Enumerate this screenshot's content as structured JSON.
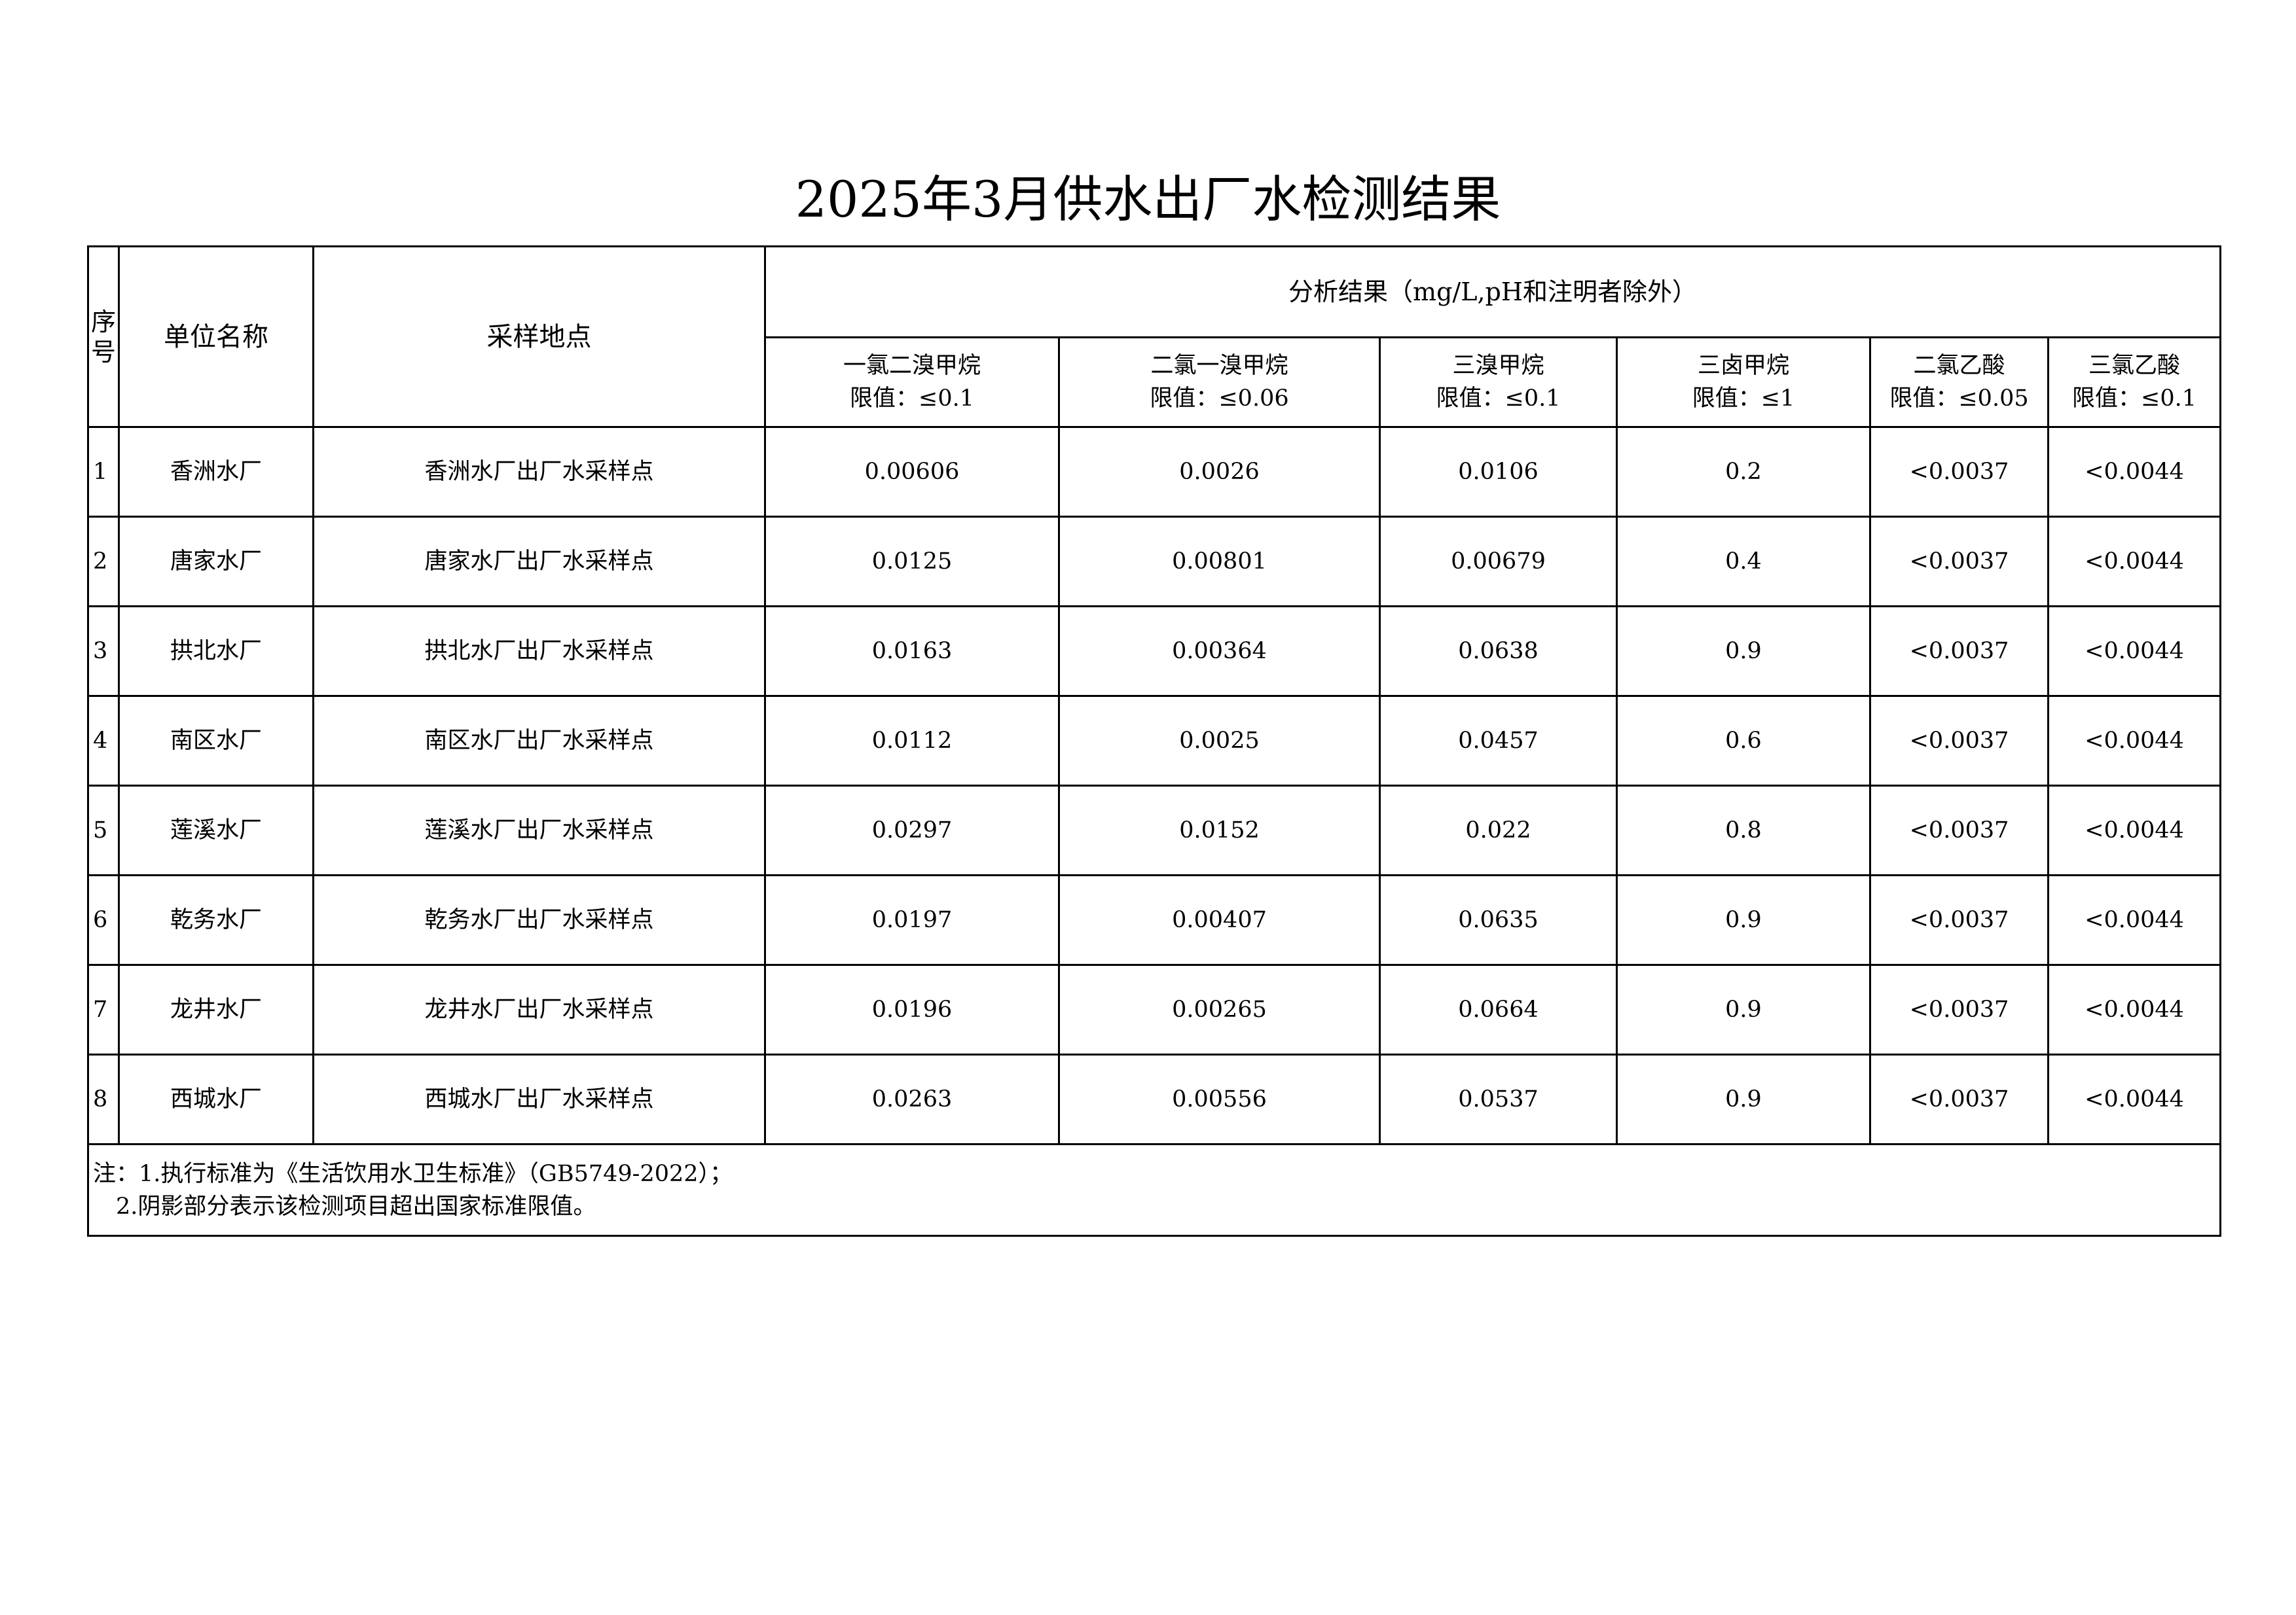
{
  "title": "2025年3月供水出厂水检测结果",
  "headers": {
    "seq": "序号",
    "unit": "单位名称",
    "site": "采样地点",
    "analysis": "分析结果（mg/L,pH和注明者除外）",
    "params": [
      {
        "name": "一氯二溴甲烷",
        "limit": "限值：≤0.1"
      },
      {
        "name": "二氯一溴甲烷",
        "limit": "限值：≤0.06"
      },
      {
        "name": "三溴甲烷",
        "limit": "限值：≤0.1"
      },
      {
        "name": "三卤甲烷",
        "limit": "限值：≤1"
      },
      {
        "name": "二氯乙酸",
        "limit": "限值：≤0.05"
      },
      {
        "name": "三氯乙酸",
        "limit": "限值：≤0.1"
      }
    ]
  },
  "rows": [
    {
      "seq": "1",
      "unit": "香洲水厂",
      "site": "香洲水厂出厂水采样点",
      "v": [
        "0.00606",
        "0.0026",
        "0.0106",
        "0.2",
        "<0.0037",
        "<0.0044"
      ]
    },
    {
      "seq": "2",
      "unit": "唐家水厂",
      "site": "唐家水厂出厂水采样点",
      "v": [
        "0.0125",
        "0.00801",
        "0.00679",
        "0.4",
        "<0.0037",
        "<0.0044"
      ]
    },
    {
      "seq": "3",
      "unit": "拱北水厂",
      "site": "拱北水厂出厂水采样点",
      "v": [
        "0.0163",
        "0.00364",
        "0.0638",
        "0.9",
        "<0.0037",
        "<0.0044"
      ]
    },
    {
      "seq": "4",
      "unit": "南区水厂",
      "site": "南区水厂出厂水采样点",
      "v": [
        "0.0112",
        "0.0025",
        "0.0457",
        "0.6",
        "<0.0037",
        "<0.0044"
      ]
    },
    {
      "seq": "5",
      "unit": "莲溪水厂",
      "site": "莲溪水厂出厂水采样点",
      "v": [
        "0.0297",
        "0.0152",
        "0.022",
        "0.8",
        "<0.0037",
        "<0.0044"
      ]
    },
    {
      "seq": "6",
      "unit": "乾务水厂",
      "site": "乾务水厂出厂水采样点",
      "v": [
        "0.0197",
        "0.00407",
        "0.0635",
        "0.9",
        "<0.0037",
        "<0.0044"
      ]
    },
    {
      "seq": "7",
      "unit": "龙井水厂",
      "site": "龙井水厂出厂水采样点",
      "v": [
        "0.0196",
        "0.00265",
        "0.0664",
        "0.9",
        "<0.0037",
        "<0.0044"
      ]
    },
    {
      "seq": "8",
      "unit": "西城水厂",
      "site": "西城水厂出厂水采样点",
      "v": [
        "0.0263",
        "0.00556",
        "0.0537",
        "0.9",
        "<0.0037",
        "<0.0044"
      ]
    }
  ],
  "notes": [
    "注：1.执行标准为《生活饮用水卫生标准》（GB5749-2022）；",
    "　2.阴影部分表示该检测项目超出国家标准限值。"
  ]
}
